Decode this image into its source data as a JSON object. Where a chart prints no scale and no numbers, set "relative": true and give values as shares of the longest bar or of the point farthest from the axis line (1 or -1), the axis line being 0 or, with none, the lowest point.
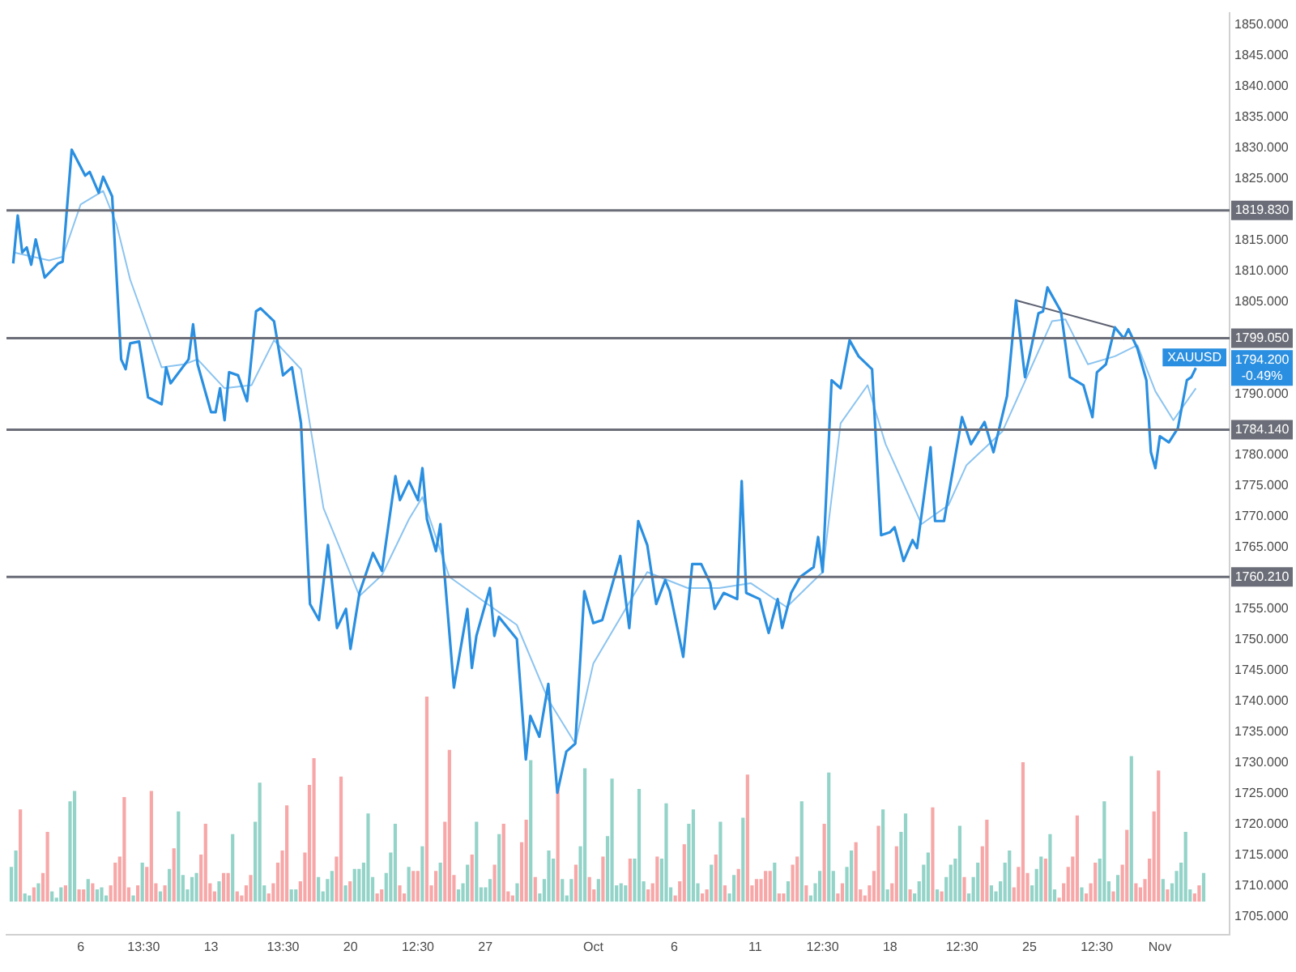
{
  "chart_data": [
    {
      "type": "line",
      "categories": [
        null,
        null,
        null,
        null,
        null,
        null,
        null,
        null,
        null,
        null,
        null,
        null,
        null,
        null,
        null,
        null,
        "6",
        null,
        null,
        null,
        null,
        null,
        null,
        null,
        null,
        null,
        null,
        null,
        null,
        null,
        "13:30",
        null,
        null,
        null,
        null,
        null,
        null,
        null,
        null,
        null,
        null,
        null,
        null,
        null,
        null,
        "13",
        null,
        null,
        null,
        null,
        null,
        null,
        null,
        null,
        null,
        null,
        null,
        null,
        null,
        null,
        null,
        "13:30",
        null,
        null,
        null,
        null,
        null,
        null,
        null,
        null,
        null,
        null,
        null,
        null,
        null,
        null,
        "20",
        null,
        null,
        null,
        null,
        null,
        null,
        null,
        null,
        null,
        null,
        null,
        null,
        null,
        null,
        "12:30",
        null,
        null,
        null,
        null,
        null,
        null,
        null,
        null,
        null,
        null,
        null,
        null,
        null,
        null,
        "27",
        null,
        null,
        null,
        null,
        null,
        null,
        null,
        null,
        null,
        null,
        null,
        null,
        null,
        null,
        null,
        null,
        null,
        null,
        null,
        null,
        null,
        null,
        null,
        "Oct",
        null,
        null,
        null,
        null,
        null,
        null,
        null,
        null,
        null,
        null,
        null,
        null,
        null,
        null,
        null,
        null,
        null,
        "6",
        null,
        null,
        null,
        null,
        null,
        null,
        null,
        null,
        null,
        null,
        null,
        null,
        null,
        null,
        null,
        null,
        null,
        "11",
        null,
        null,
        null,
        null,
        null,
        null,
        null,
        null,
        null,
        null,
        null,
        null,
        null,
        null,
        "12:30",
        null,
        null,
        null,
        null,
        null,
        null,
        null,
        null,
        null,
        null,
        null,
        null,
        null,
        null,
        "18",
        null,
        null,
        null,
        null,
        null,
        null,
        null,
        null,
        null,
        null,
        null,
        null,
        null,
        null,
        null,
        "12:30",
        null,
        null,
        null,
        null,
        null,
        null,
        null,
        null,
        null,
        null,
        null,
        null,
        null,
        null,
        "25",
        null,
        null,
        null,
        null,
        null,
        null,
        null,
        null,
        null,
        null,
        null,
        null,
        null,
        null,
        "12:30",
        null,
        null,
        null,
        null,
        null,
        null,
        null,
        null,
        null,
        null,
        null,
        null,
        null,
        "Nov",
        null,
        null,
        null,
        null,
        null,
        null,
        null,
        null,
        null,
        null,
        null,
        null,
        null,
        null,
        null
      ],
      "series": [
        {
          "name": "XAUUSD",
          "color": "#2a8fe0",
          "values": [
            null,
            1811.2,
            1819.0,
            1813.0,
            1813.8,
            1811.0,
            1815.1,
            null,
            1808.9,
            null,
            null,
            1811.2,
            1811.5,
            null,
            1829.7,
            null,
            null,
            1825.5,
            1826.1,
            null,
            1822.7,
            1825.3,
            null,
            1822.1,
            null,
            1795.6,
            1794.0,
            1798.2,
            null,
            1798.5,
            null,
            1789.4,
            null,
            null,
            1788.3,
            1794.3,
            1791.7,
            null,
            null,
            null,
            1795.6,
            1801.3,
            1794.8,
            null,
            null,
            1787.0,
            1787.0,
            1790.9,
            1785.7,
            1793.5,
            null,
            1793.0,
            null,
            1788.8,
            null,
            1803.4,
            1803.9,
            null,
            null,
            1801.8,
            null,
            1793.0,
            null,
            1794.3,
            null,
            1785.2,
            null,
            1755.8,
            null,
            1753.2,
            null,
            1765.4,
            null,
            1751.9,
            null,
            1755.0,
            1748.5,
            null,
            1757.6,
            null,
            null,
            1764.1,
            null,
            1761.2,
            null,
            null,
            1776.6,
            1772.7,
            null,
            1775.8,
            null,
            1772.7,
            1777.9,
            1769.6,
            null,
            1764.4,
            1768.8,
            null,
            null,
            1742.2,
            null,
            null,
            1755.0,
            1745.4,
            1750.6,
            null,
            null,
            1758.4,
            1750.6,
            1753.7,
            null,
            null,
            null,
            1750.1,
            null,
            1730.5,
            1737.6,
            null,
            1734.2,
            null,
            1742.8,
            null,
            1725.1,
            null,
            1731.8,
            null,
            1733.1,
            null,
            1757.9,
            null,
            1752.7,
            null,
            1753.2,
            null,
            null,
            null,
            1763.6,
            null,
            1751.9,
            null,
            1769.3,
            null,
            1765.4,
            null,
            1755.8,
            null,
            1759.7,
            1757.9,
            null,
            null,
            1747.2,
            null,
            1762.3,
            null,
            1762.3,
            null,
            1759.2,
            1755.0,
            null,
            1757.6,
            null,
            null,
            1756.6,
            1775.8,
            1757.6,
            null,
            null,
            1756.6,
            null,
            1751.1,
            null,
            1756.6,
            1751.9,
            null,
            1757.6,
            null,
            1760.2,
            null,
            null,
            1761.8,
            1766.7,
            1761.0,
            null,
            1792.2,
            null,
            1790.9,
            null,
            1798.7,
            null,
            1796.1,
            null,
            null,
            1794.0,
            null,
            1767.0,
            null,
            1767.5,
            1768.3,
            null,
            1762.8,
            null,
            1766.2,
            1764.9,
            null,
            null,
            1781.3,
            1769.3,
            null,
            1769.3,
            null,
            null,
            null,
            1786.2,
            null,
            1781.8,
            null,
            null,
            1785.4,
            null,
            1780.5,
            null,
            null,
            1789.6,
            null,
            1805.2,
            null,
            1792.7,
            null,
            null,
            1803.1,
            1803.4,
            1807.3,
            null,
            null,
            1803.4,
            null,
            1792.7,
            null,
            null,
            1791.4,
            null,
            1786.2,
            1793.5,
            null,
            1794.8,
            null,
            1800.8,
            null,
            1799.0,
            1800.5,
            null,
            1797.4,
            null,
            1792.2,
            1780.5,
            1777.9,
            1783.1,
            null,
            1782.1,
            null,
            1784.4,
            null,
            1792.2,
            1792.7,
            1794.2,
            null,
            null,
            null,
            null,
            null,
            null,
            null
          ]
        },
        {
          "color": "#8cc4f0",
          "values": [
            null,
            1813,
            null,
            null,
            null,
            null,
            null,
            null,
            null,
            1811.7,
            null,
            null,
            1812.3,
            null,
            null,
            null,
            1820.8,
            null,
            null,
            null,
            null,
            1823,
            null,
            null,
            1817.5,
            null,
            null,
            1808.6,
            null,
            null,
            null,
            null,
            null,
            null,
            1794.3,
            null,
            null,
            null,
            null,
            1794.8,
            null,
            null,
            1795.6,
            null,
            null,
            null,
            null,
            null,
            1790.9,
            null,
            null,
            null,
            null,
            null,
            1791.4,
            null,
            null,
            null,
            null,
            1798.7,
            null,
            null,
            null,
            null,
            null,
            1794,
            null,
            null,
            null,
            null,
            1771.4,
            null,
            null,
            null,
            null,
            null,
            null,
            null,
            1757.1,
            null,
            null,
            null,
            null,
            1760.5,
            null,
            null,
            null,
            null,
            null,
            1769.6,
            null,
            null,
            1773.2,
            null,
            null,
            null,
            null,
            null,
            1760.2,
            null,
            null,
            null,
            null,
            null,
            null,
            null,
            null,
            null,
            null,
            null,
            null,
            null,
            null,
            1752.4,
            null,
            null,
            null,
            null,
            null,
            null,
            1740.2,
            null,
            null,
            null,
            null,
            null,
            1733.1,
            null,
            null,
            null,
            1746.1,
            null,
            null,
            null,
            null,
            null,
            null,
            null,
            null,
            null,
            null,
            null,
            1761,
            null,
            null,
            null,
            null,
            null,
            null,
            null,
            null,
            1758.4,
            null,
            null,
            null,
            null,
            null,
            null,
            1758.4,
            null,
            null,
            null,
            null,
            null,
            null,
            1759.2,
            null,
            null,
            null,
            null,
            null,
            null,
            null,
            1755.3,
            null,
            null,
            null,
            null,
            null,
            null,
            null,
            1761,
            null,
            null,
            null,
            1785.2,
            null,
            null,
            null,
            null,
            null,
            1791.4,
            null,
            null,
            null,
            1781.8,
            null,
            null,
            null,
            null,
            null,
            null,
            null,
            1768.8,
            null,
            null,
            null,
            null,
            null,
            1771.9,
            null,
            null,
            null,
            1778.4,
            null,
            null,
            null,
            null,
            null,
            null,
            null,
            1783.9,
            null,
            null,
            null,
            1790.4,
            null,
            null,
            null,
            null,
            null,
            null,
            1801.8,
            null,
            null,
            1802.1,
            null,
            null,
            null,
            null,
            1794.8,
            null,
            null,
            null,
            null,
            null,
            1796.1,
            null,
            null,
            null,
            null,
            1797.9,
            null,
            null,
            null,
            1790.4,
            null,
            null,
            null,
            1785.7,
            null,
            null,
            null,
            null,
            1790.9,
            null,
            null,
            null,
            null,
            null,
            null,
            null
          ]
        },
        {
          "color": "#5d6070",
          "values": [
            null,
            null,
            null,
            null,
            null,
            null,
            null,
            null,
            null,
            null,
            null,
            null,
            null,
            null,
            null,
            null,
            null,
            null,
            null,
            null,
            null,
            null,
            null,
            null,
            null,
            null,
            null,
            null,
            null,
            null,
            null,
            null,
            null,
            null,
            null,
            null,
            null,
            null,
            null,
            null,
            null,
            null,
            null,
            null,
            null,
            null,
            null,
            null,
            null,
            null,
            null,
            null,
            null,
            null,
            null,
            null,
            null,
            null,
            null,
            null,
            null,
            null,
            null,
            null,
            null,
            null,
            null,
            null,
            null,
            null,
            null,
            null,
            null,
            null,
            null,
            null,
            null,
            null,
            null,
            null,
            null,
            null,
            null,
            null,
            null,
            null,
            null,
            null,
            null,
            null,
            null,
            null,
            null,
            null,
            null,
            null,
            null,
            null,
            null,
            null,
            null,
            null,
            null,
            null,
            null,
            null,
            null,
            null,
            null,
            null,
            null,
            null,
            null,
            null,
            null,
            null,
            null,
            null,
            null,
            null,
            null,
            null,
            null,
            null,
            null,
            null,
            null,
            null,
            null,
            null,
            null,
            null,
            null,
            null,
            null,
            null,
            null,
            null,
            null,
            null,
            null,
            null,
            null,
            null,
            null,
            null,
            null,
            null,
            null,
            null,
            null,
            null,
            null,
            null,
            null,
            null,
            null,
            null,
            null,
            null,
            null,
            null,
            null,
            null,
            null,
            null,
            null,
            null,
            null,
            null,
            null,
            null,
            null,
            null,
            null,
            null,
            null,
            null,
            null,
            null,
            null,
            null,
            null,
            null,
            null,
            null,
            null,
            null,
            null,
            null,
            null,
            null,
            null,
            null,
            null,
            null,
            null,
            null,
            null,
            null,
            null,
            null,
            null,
            null,
            null,
            null,
            null,
            null,
            null,
            null,
            null,
            null,
            null,
            null,
            null,
            null,
            null,
            null,
            null,
            null,
            null,
            null,
            null,
            null,
            1805.2,
            null,
            null,
            null,
            null,
            null,
            null,
            null,
            null,
            null,
            null,
            null,
            null,
            null,
            null,
            null,
            null,
            null,
            null,
            null,
            null,
            null,
            1800.8,
            null,
            null,
            null,
            null,
            null,
            null,
            null,
            null,
            null,
            null,
            null,
            null,
            null,
            null,
            null,
            null,
            null,
            null,
            null,
            null,
            null,
            null,
            null,
            null,
            null
          ]
        }
      ],
      "ylim": [
        1702,
        1852
      ],
      "yticks": [
        {
          "value": 1705,
          "label": "1705.000"
        },
        {
          "value": 1710,
          "label": "1710.000"
        },
        {
          "value": 1715,
          "label": "1715.000"
        },
        {
          "value": 1720,
          "label": "1720.000"
        },
        {
          "value": 1725,
          "label": "1725.000"
        },
        {
          "value": 1730,
          "label": "1730.000"
        },
        {
          "value": 1735,
          "label": "1735.000"
        },
        {
          "value": 1740,
          "label": "1740.000"
        },
        {
          "value": 1745,
          "label": "1745.000"
        },
        {
          "value": 1750,
          "label": "1750.000"
        },
        {
          "value": 1755,
          "label": "1755.000"
        },
        {
          "value": 1765,
          "label": "1765.000"
        },
        {
          "value": 1770,
          "label": "1770.000"
        },
        {
          "value": 1775,
          "label": "1775.000"
        },
        {
          "value": 1780,
          "label": "1780.000"
        },
        {
          "value": 1790,
          "label": "1790.000"
        },
        {
          "value": 1805,
          "label": "1805.000"
        },
        {
          "value": 1810,
          "label": "1810.000"
        },
        {
          "value": 1815,
          "label": "1815.000"
        },
        {
          "value": 1825,
          "label": "1825.000"
        },
        {
          "value": 1830,
          "label": "1830.000"
        },
        {
          "value": 1835,
          "label": "1835.000"
        },
        {
          "value": 1840,
          "label": "1840.000"
        },
        {
          "value": 1845,
          "label": "1845.000"
        },
        {
          "value": 1850,
          "label": "1850.000"
        }
      ],
      "ref_lines": [
        {
          "axis": "y",
          "value": 1819.83,
          "label": "1819.830",
          "color": "#6b6e78"
        },
        {
          "axis": "y",
          "value": 1799.05,
          "label": "1799.050",
          "color": "#6b6e78"
        },
        {
          "axis": "y",
          "value": 1784.14,
          "label": "1784.140",
          "color": "#6b6e78"
        },
        {
          "axis": "y",
          "value": 1760.21,
          "label": "1760.210",
          "color": "#6b6e78"
        }
      ],
      "annotations": [
        "1794.200",
        "-0.49%"
      ]
    },
    {
      "type": "bar",
      "relative": true,
      "categories": [
        null,
        null,
        null,
        null,
        null,
        null,
        null,
        null,
        null,
        null,
        null,
        null,
        null,
        null,
        null,
        null,
        null,
        null,
        null,
        null,
        null,
        null,
        null,
        null,
        null,
        null,
        null,
        null,
        null,
        null,
        null,
        null,
        null,
        null,
        null,
        null,
        null,
        null,
        null,
        null,
        null,
        null,
        null,
        null,
        null,
        null,
        null,
        null,
        null,
        null,
        null,
        null,
        null,
        null,
        null,
        null,
        null,
        null,
        null,
        null,
        null,
        null,
        null,
        null,
        null,
        null,
        null,
        null,
        null,
        null,
        null,
        null,
        null,
        null,
        null,
        null,
        null,
        null,
        null,
        null,
        null,
        null,
        null,
        null,
        null,
        null,
        null,
        null,
        null,
        null,
        null,
        null,
        null,
        null,
        null,
        null,
        null,
        null,
        null,
        null,
        null,
        null,
        null,
        null,
        null,
        null,
        null,
        null,
        null,
        null,
        null,
        null,
        null,
        null,
        null,
        null,
        null,
        null,
        null,
        null,
        null,
        null,
        null,
        null,
        null,
        null,
        null,
        null,
        null,
        null,
        null,
        null,
        null,
        null,
        null,
        null,
        null,
        null,
        null,
        null,
        null,
        null,
        null,
        null,
        null,
        null,
        null,
        null,
        null,
        null,
        null,
        null,
        null,
        null,
        null,
        null,
        null,
        null,
        null,
        null,
        null,
        null,
        null,
        null,
        null,
        null,
        null,
        null,
        null,
        null,
        null,
        null,
        null,
        null,
        null,
        null,
        null,
        null,
        null,
        null,
        null,
        null,
        null,
        null,
        null,
        null,
        null,
        null,
        null,
        null,
        null,
        null,
        null,
        null,
        null,
        null,
        null,
        null,
        null,
        null,
        null,
        null,
        null,
        null,
        null,
        null,
        null,
        null,
        null,
        null,
        null,
        null,
        null,
        null,
        null,
        null,
        null,
        null,
        null,
        null,
        null,
        null,
        null,
        null,
        null,
        null,
        null,
        null,
        null,
        null,
        null,
        null,
        null,
        null,
        null,
        null,
        null,
        null,
        null,
        null,
        null,
        null,
        null,
        null,
        null,
        null,
        null,
        null,
        null,
        null,
        null,
        null,
        null,
        null,
        null,
        null,
        null,
        null,
        null,
        null,
        null,
        null,
        null,
        null,
        null
      ],
      "values": [
        0.17,
        0.25,
        0.45,
        0.04,
        0.03,
        0.07,
        0.09,
        0.14,
        0.34,
        0.05,
        0.02,
        0.07,
        0.08,
        0.49,
        0.54,
        0.06,
        0.06,
        0.11,
        0.09,
        0.06,
        0.07,
        0.03,
        0.08,
        0.19,
        0.22,
        0.51,
        0.07,
        0.03,
        0.08,
        0.19,
        0.17,
        0.54,
        0.09,
        0.05,
        0.08,
        0.16,
        0.26,
        0.44,
        0.13,
        0.06,
        0.12,
        0.14,
        0.23,
        0.38,
        0.09,
        0.05,
        0.1,
        0.14,
        0.14,
        0.33,
        0.05,
        0.03,
        0.08,
        0.13,
        0.39,
        0.58,
        0.08,
        0.04,
        0.09,
        0.19,
        0.25,
        0.47,
        0.06,
        0.06,
        0.1,
        0.24,
        0.57,
        0.7,
        0.12,
        0.05,
        0.11,
        0.15,
        0.22,
        0.61,
        0.08,
        0.1,
        0.16,
        0.16,
        0.19,
        0.43,
        0.12,
        0.04,
        0.06,
        0.14,
        0.24,
        0.38,
        0.08,
        0.04,
        0.17,
        0.15,
        0.15,
        0.27,
        1.0,
        0.08,
        0.15,
        0.19,
        0.39,
        0.74,
        0.13,
        0.06,
        0.09,
        0.18,
        0.23,
        0.39,
        0.07,
        0.07,
        0.11,
        0.18,
        0.33,
        0.38,
        0.05,
        0.03,
        0.09,
        0.29,
        0.4,
        0.69,
        0.12,
        0.04,
        0.11,
        0.25,
        0.21,
        0.55,
        0.11,
        0.03,
        0.11,
        0.18,
        0.27,
        0.65,
        0.12,
        0.06,
        0.11,
        0.22,
        0.32,
        0.6,
        0.08,
        0.09,
        0.08,
        0.21,
        0.21,
        0.55,
        0.1,
        0.06,
        0.09,
        0.22,
        0.21,
        0.48,
        0.07,
        0.03,
        0.1,
        0.28,
        0.38,
        0.45,
        0.09,
        0.04,
        0.06,
        0.18,
        0.23,
        0.39,
        0.08,
        0.04,
        0.13,
        0.16,
        0.41,
        0.62,
        0.08,
        0.11,
        0.11,
        0.15,
        0.15,
        0.19,
        0.04,
        0.04,
        0.1,
        0.18,
        0.22,
        0.49,
        0.08,
        0.03,
        0.09,
        0.15,
        0.38,
        0.63,
        0.15,
        0.04,
        0.09,
        0.17,
        0.25,
        0.29,
        0.06,
        0.03,
        0.08,
        0.15,
        0.37,
        0.45,
        0.06,
        0.09,
        0.27,
        0.34,
        0.43,
        0.06,
        0.04,
        0.1,
        0.18,
        0.24,
        0.46,
        0.06,
        0.05,
        0.12,
        0.18,
        0.21,
        0.37,
        0.12,
        0.04,
        0.12,
        0.19,
        0.27,
        0.4,
        0.08,
        0.05,
        0.1,
        0.19,
        0.25,
        0.07,
        0.17,
        0.68,
        0.14,
        0.08,
        0.16,
        0.22,
        0.21,
        0.33,
        0.06,
        0.02,
        0.09,
        0.17,
        0.22,
        0.42,
        0.07,
        0.04,
        0.09,
        0.19,
        0.21,
        0.49,
        0.1,
        0.05,
        0.13,
        0.18,
        0.35,
        0.71,
        0.09,
        0.07,
        0.11,
        0.21,
        0.44,
        0.64,
        0.11,
        0.06,
        0.09,
        0.15,
        0.19,
        0.34,
        0.06,
        0.04,
        0.08,
        0.14
      ],
      "colors": [
        "#93d3c8",
        "#93d3c8",
        "#f7a7a7",
        "#93d3c8",
        "#93d3c8",
        "#f7a7a7",
        "#93d3c8",
        "#f7a7a7",
        "#f7a7a7",
        "#93d3c8",
        "#93d3c8",
        "#93d3c8",
        "#f7a7a7",
        "#93d3c8",
        "#93d3c8",
        "#f7a7a7",
        "#f7a7a7",
        "#93d3c8",
        "#f7a7a7",
        "#93d3c8",
        "#93d3c8",
        "#93d3c8",
        "#f7a7a7",
        "#f7a7a7",
        "#f7a7a7",
        "#f7a7a7",
        "#f7a7a7",
        "#93d3c8",
        "#f7a7a7",
        "#93d3c8",
        "#f7a7a7",
        "#f7a7a7",
        "#f7a7a7",
        "#93d3c8",
        "#f7a7a7",
        "#93d3c8",
        "#f7a7a7",
        "#93d3c8",
        "#93d3c8",
        "#93d3c8",
        "#93d3c8",
        "#93d3c8",
        "#f7a7a7",
        "#f7a7a7",
        "#f7a7a7",
        "#f7a7a7",
        "#93d3c8",
        "#f7a7a7",
        "#f7a7a7",
        "#93d3c8",
        "#f7a7a7",
        "#f7a7a7",
        "#f7a7a7",
        "#f7a7a7",
        "#93d3c8",
        "#93d3c8",
        "#93d3c8",
        "#f7a7a7",
        "#f7a7a7",
        "#f7a7a7",
        "#f7a7a7",
        "#f7a7a7",
        "#93d3c8",
        "#93d3c8",
        "#f7a7a7",
        "#f7a7a7",
        "#f7a7a7",
        "#f7a7a7",
        "#93d3c8",
        "#93d3c8",
        "#93d3c8",
        "#93d3c8",
        "#f7a7a7",
        "#f7a7a7",
        "#93d3c8",
        "#f7a7a7",
        "#93d3c8",
        "#93d3c8",
        "#93d3c8",
        "#93d3c8",
        "#93d3c8",
        "#f7a7a7",
        "#f7a7a7",
        "#93d3c8",
        "#93d3c8",
        "#93d3c8",
        "#f7a7a7",
        "#f7a7a7",
        "#93d3c8",
        "#f7a7a7",
        "#f7a7a7",
        "#93d3c8",
        "#f7a7a7",
        "#f7a7a7",
        "#f7a7a7",
        "#93d3c8",
        "#f7a7a7",
        "#f7a7a7",
        "#f7a7a7",
        "#93d3c8",
        "#93d3c8",
        "#93d3c8",
        "#f7a7a7",
        "#93d3c8",
        "#93d3c8",
        "#93d3c8",
        "#93d3c8",
        "#f7a7a7",
        "#93d3c8",
        "#f7a7a7",
        "#f7a7a7",
        "#f7a7a7",
        "#93d3c8",
        "#f7a7a7",
        "#f7a7a7",
        "#93d3c8",
        "#f7a7a7",
        "#93d3c8",
        "#93d3c8",
        "#93d3c8",
        "#93d3c8",
        "#f7a7a7",
        "#93d3c8",
        "#93d3c8",
        "#93d3c8",
        "#f7a7a7",
        "#93d3c8",
        "#93d3c8",
        "#f7a7a7",
        "#f7a7a7",
        "#93d3c8",
        "#f7a7a7",
        "#93d3c8",
        "#93d3c8",
        "#93d3c8",
        "#93d3c8",
        "#93d3c8",
        "#f7a7a7",
        "#93d3c8",
        "#93d3c8",
        "#93d3c8",
        "#f7a7a7",
        "#f7a7a7",
        "#f7a7a7",
        "#93d3c8",
        "#93d3c8",
        "#93d3c8",
        "#f7a7a7",
        "#f7a7a7",
        "#f7a7a7",
        "#93d3c8",
        "#93d3c8",
        "#93d3c8",
        "#f7a7a7",
        "#f7a7a7",
        "#93d3c8",
        "#f7a7a7",
        "#93d3c8",
        "#f7a7a7",
        "#93d3c8",
        "#93d3c8",
        "#f7a7a7",
        "#93d3c8",
        "#f7a7a7",
        "#f7a7a7",
        "#f7a7a7",
        "#f7a7a7",
        "#f7a7a7",
        "#f7a7a7",
        "#93d3c8",
        "#f7a7a7",
        "#f7a7a7",
        "#93d3c8",
        "#f7a7a7",
        "#f7a7a7",
        "#93d3c8",
        "#f7a7a7",
        "#93d3c8",
        "#93d3c8",
        "#93d3c8",
        "#f7a7a7",
        "#93d3c8",
        "#93d3c8",
        "#f7a7a7",
        "#f7a7a7",
        "#93d3c8",
        "#93d3c8",
        "#f7a7a7",
        "#f7a7a7",
        "#f7a7a7",
        "#f7a7a7",
        "#f7a7a7",
        "#f7a7a7",
        "#93d3c8",
        "#93d3c8",
        "#f7a7a7",
        "#f7a7a7",
        "#93d3c8",
        "#93d3c8",
        "#f7a7a7",
        "#93d3c8",
        "#93d3c8",
        "#93d3c8",
        "#93d3c8",
        "#f7a7a7",
        "#93d3c8",
        "#f7a7a7",
        "#93d3c8",
        "#93d3c8",
        "#93d3c8",
        "#93d3c8",
        "#f7a7a7",
        "#93d3c8",
        "#93d3c8",
        "#93d3c8",
        "#f7a7a7",
        "#f7a7a7",
        "#93d3c8",
        "#93d3c8",
        "#93d3c8",
        "#93d3c8",
        "#93d3c8",
        "#f7a7a7",
        "#f7a7a7",
        "#f7a7a7",
        "#f7a7a7",
        "#93d3c8",
        "#93d3c8",
        "#93d3c8",
        "#f7a7a7",
        "#93d3c8",
        "#93d3c8",
        "#f7a7a7",
        "#f7a7a7",
        "#f7a7a7",
        "#f7a7a7",
        "#f7a7a7",
        "#93d3c8",
        "#f7a7a7",
        "#f7a7a7",
        "#f7a7a7",
        "#93d3c8",
        "#93d3c8",
        "#93d3c8",
        "#f7a7a7",
        "#93d3c8",
        "#f7a7a7",
        "#f7a7a7",
        "#93d3c8",
        "#f7a7a7",
        "#f7a7a7",
        "#f7a7a7",
        "#f7a7a7",
        "#f7a7a7",
        "#f7a7a7",
        "#93d3c8",
        "#f7a7a7",
        "#93d3c8",
        "#93d3c8",
        "#93d3c8",
        "#93d3c8",
        "#93d3c8",
        "#f7a7a7",
        "#f7a7a7",
        "#93d3c8"
      ]
    }
  ]
}
